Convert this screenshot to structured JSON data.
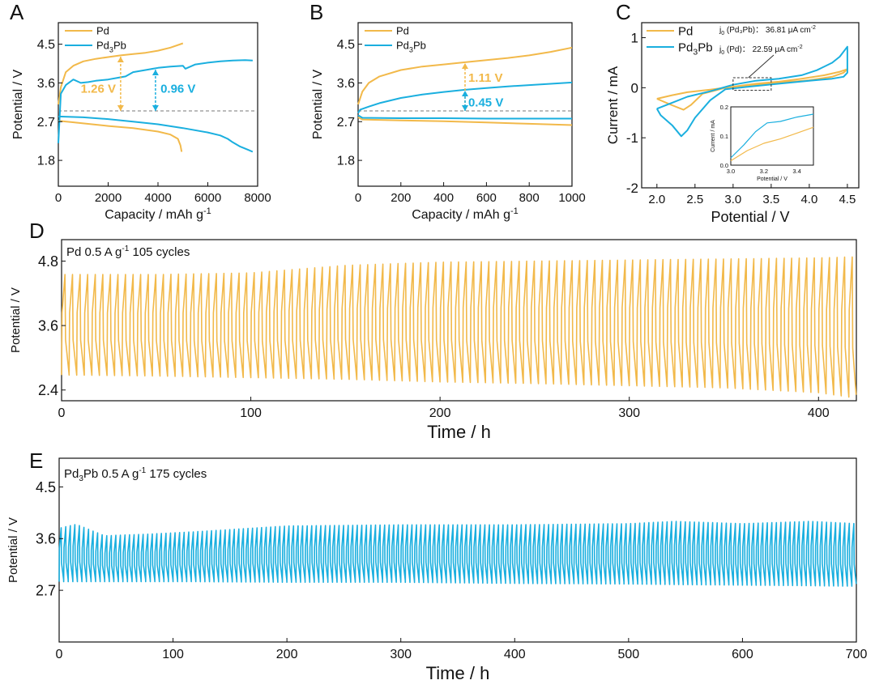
{
  "colors": {
    "pd": "#F2B94A",
    "pd3pb": "#1AAFDF",
    "axis": "#111111",
    "ref": "#777777"
  },
  "chart_data": [
    {
      "panel": "A",
      "type": "line",
      "xlabel": "Capacity / mAh g",
      "xlabel_sup": "-1",
      "ylabel": "Potential / V",
      "xlim": [
        0,
        8000
      ],
      "ylim": [
        1.2,
        5.0
      ],
      "xticks": [
        "0",
        "2000",
        "4000",
        "6000",
        "8000"
      ],
      "yticks": [
        "1.8",
        "2.7",
        "3.6",
        "4.5"
      ],
      "legend": [
        {
          "label": "Pd",
          "color_key": "pd"
        },
        {
          "label": "Pd3Pb",
          "base": "Pd",
          "sub": "3",
          "tail": "Pb",
          "color_key": "pd3pb"
        }
      ],
      "reference_v": 2.95,
      "series": [
        {
          "name": "Pd charge",
          "color_key": "pd",
          "x": [
            0,
            100,
            300,
            600,
            1000,
            1500,
            2000,
            2500,
            3000,
            3500,
            4000,
            4500,
            5000
          ],
          "y": [
            3.1,
            3.5,
            3.85,
            4.0,
            4.1,
            4.16,
            4.2,
            4.24,
            4.27,
            4.3,
            4.35,
            4.42,
            4.52
          ]
        },
        {
          "name": "Pd discharge",
          "color_key": "pd",
          "x": [
            0,
            500,
            1000,
            2000,
            3000,
            4000,
            4500,
            4800,
            4900,
            4950
          ],
          "y": [
            2.72,
            2.69,
            2.66,
            2.6,
            2.55,
            2.47,
            2.4,
            2.3,
            2.15,
            2.0
          ]
        },
        {
          "name": "Pd3Pb charge",
          "color_key": "pd3pb",
          "x": [
            0,
            100,
            300,
            600,
            900,
            1200,
            1500,
            2000,
            2400,
            2700,
            3000,
            3500,
            3800,
            4000,
            4500,
            5000,
            5100,
            5500,
            6000,
            6500,
            7000,
            7500,
            7800
          ],
          "y": [
            2.2,
            3.35,
            3.55,
            3.68,
            3.6,
            3.62,
            3.65,
            3.68,
            3.72,
            3.75,
            3.85,
            3.9,
            3.93,
            3.95,
            3.98,
            4.0,
            3.93,
            4.03,
            4.07,
            4.1,
            4.12,
            4.13,
            4.12
          ]
        },
        {
          "name": "Pd3Pb discharge",
          "color_key": "pd3pb",
          "x": [
            0,
            1000,
            2000,
            3000,
            4000,
            5000,
            6000,
            6500,
            6800,
            7000,
            7300,
            7600,
            7800
          ],
          "y": [
            2.82,
            2.8,
            2.76,
            2.7,
            2.64,
            2.55,
            2.45,
            2.38,
            2.3,
            2.22,
            2.12,
            2.05,
            2.0
          ]
        }
      ],
      "annotations": [
        {
          "text": "1.26 V",
          "color_key": "pd",
          "x": 2500,
          "y_from": 2.95,
          "y_to": 4.21,
          "label_x": 900,
          "label_y": 3.47
        },
        {
          "text": "0.96 V",
          "color_key": "pd3pb",
          "x": 3900,
          "y_from": 2.95,
          "y_to": 3.91,
          "label_x": 4100,
          "label_y": 3.47
        }
      ]
    },
    {
      "panel": "B",
      "type": "line",
      "xlabel": "Capacity / mAh g",
      "xlabel_sup": "-1",
      "ylabel": "Potential / V",
      "xlim": [
        0,
        1000
      ],
      "ylim": [
        1.2,
        5.0
      ],
      "xticks": [
        "0",
        "200",
        "400",
        "600",
        "800",
        "1000"
      ],
      "yticks": [
        "1.8",
        "2.7",
        "3.6",
        "4.5"
      ],
      "legend": [
        {
          "label": "Pd",
          "color_key": "pd"
        },
        {
          "label": "Pd3Pb",
          "base": "Pd",
          "sub": "3",
          "tail": "Pb",
          "color_key": "pd3pb"
        }
      ],
      "reference_v": 2.95,
      "series": [
        {
          "name": "Pd charge",
          "color_key": "pd",
          "x": [
            0,
            20,
            50,
            100,
            200,
            300,
            400,
            500,
            600,
            700,
            800,
            900,
            1000
          ],
          "y": [
            3.1,
            3.4,
            3.6,
            3.75,
            3.9,
            3.98,
            4.03,
            4.08,
            4.13,
            4.18,
            4.24,
            4.32,
            4.42
          ]
        },
        {
          "name": "Pd discharge",
          "color_key": "pd",
          "x": [
            0,
            20,
            200,
            400,
            600,
            800,
            1000
          ],
          "y": [
            2.8,
            2.75,
            2.73,
            2.71,
            2.68,
            2.65,
            2.62
          ]
        },
        {
          "name": "Pd3Pb charge",
          "color_key": "pd3pb",
          "x": [
            0,
            10,
            50,
            100,
            200,
            300,
            400,
            500,
            600,
            700,
            800,
            900,
            1000
          ],
          "y": [
            2.9,
            2.98,
            3.05,
            3.13,
            3.25,
            3.33,
            3.39,
            3.44,
            3.48,
            3.52,
            3.55,
            3.58,
            3.61
          ]
        },
        {
          "name": "Pd3Pb discharge",
          "color_key": "pd3pb",
          "x": [
            0,
            20,
            200,
            400,
            600,
            800,
            1000
          ],
          "y": [
            2.85,
            2.79,
            2.78,
            2.78,
            2.77,
            2.77,
            2.77
          ]
        }
      ],
      "annotations": [
        {
          "text": "1.11 V",
          "color_key": "pd",
          "x": 500,
          "y_from": 2.95,
          "y_to": 4.06,
          "label_x": 515,
          "label_y": 3.72
        },
        {
          "text": "0.45 V",
          "color_key": "pd3pb",
          "x": 500,
          "y_from": 2.95,
          "y_to": 3.42,
          "label_x": 515,
          "label_y": 3.15
        }
      ]
    },
    {
      "panel": "C",
      "type": "line",
      "xlabel": "Potential / V",
      "ylabel": "Current / mA",
      "xlim": [
        1.8,
        4.65
      ],
      "ylim": [
        -2,
        1.3
      ],
      "xticks": [
        "2.0",
        "2.5",
        "3.0",
        "3.5",
        "4.0",
        "4.5"
      ],
      "yticks": [
        "-2",
        "-1",
        "0",
        "1"
      ],
      "legend": [
        {
          "label": "Pd",
          "color_key": "pd"
        },
        {
          "label": "Pd3Pb",
          "base": "Pd",
          "sub": "3",
          "tail": "Pb",
          "color_key": "pd3pb"
        }
      ],
      "text_annotations": [
        {
          "base": "j",
          "sub": "0",
          "tail": " (Pd₃Pb)： 36.81 μA cm",
          "sup": "-2"
        },
        {
          "base": "j",
          "sub": "0",
          "tail": " (Pd)： 22.59 μA cm",
          "sup": "-2"
        }
      ],
      "series": [
        {
          "name": "Pd CV",
          "color_key": "pd",
          "x": [
            2.0,
            2.2,
            2.4,
            2.7,
            3.0,
            3.3,
            3.6,
            3.9,
            4.2,
            4.4,
            4.5,
            4.45,
            4.3,
            4.0,
            3.6,
            3.2,
            2.9,
            2.6,
            2.45,
            2.35,
            2.2,
            2.0
          ],
          "y": [
            -0.22,
            -0.15,
            -0.09,
            -0.04,
            0.02,
            0.08,
            0.12,
            0.18,
            0.25,
            0.32,
            0.37,
            0.3,
            0.22,
            0.15,
            0.1,
            0.05,
            0.0,
            -0.12,
            -0.34,
            -0.44,
            -0.35,
            -0.22
          ]
        },
        {
          "name": "Pd3Pb CV",
          "color_key": "pd3pb",
          "x": [
            2.0,
            2.2,
            2.4,
            2.7,
            3.0,
            3.3,
            3.6,
            3.9,
            4.1,
            4.3,
            4.4,
            4.5,
            4.5,
            4.45,
            4.3,
            4.0,
            3.6,
            3.2,
            2.9,
            2.7,
            2.5,
            2.4,
            2.32,
            2.2,
            2.05,
            2.0
          ],
          "y": [
            -0.42,
            -0.3,
            -0.18,
            -0.07,
            0.06,
            0.14,
            0.18,
            0.25,
            0.35,
            0.5,
            0.62,
            0.82,
            0.3,
            0.22,
            0.18,
            0.14,
            0.08,
            0.02,
            -0.03,
            -0.25,
            -0.6,
            -0.85,
            -0.97,
            -0.75,
            -0.55,
            -0.42
          ]
        }
      ],
      "inset": {
        "xlabel": "Potential / V",
        "ylabel": "Current / mA",
        "xlim": [
          3.0,
          3.5
        ],
        "ylim": [
          0.0,
          0.2
        ],
        "xticks": [
          "3.0",
          "3.2",
          "3.4"
        ],
        "yticks": [
          "0.0",
          "0.1",
          "0.2"
        ],
        "series": [
          {
            "color_key": "pd",
            "x": [
              3.0,
              3.1,
              3.2,
              3.3,
              3.4,
              3.5
            ],
            "y": [
              0.015,
              0.05,
              0.075,
              0.09,
              0.11,
              0.13
            ]
          },
          {
            "color_key": "pd3pb",
            "x": [
              3.0,
              3.08,
              3.15,
              3.22,
              3.3,
              3.4,
              3.5
            ],
            "y": [
              0.025,
              0.07,
              0.115,
              0.145,
              0.15,
              0.165,
              0.175
            ]
          }
        ]
      }
    },
    {
      "panel": "D",
      "type": "line",
      "title_base": "Pd  0.5 A g",
      "title_sup": "-1",
      "title_tail": " 105 cycles",
      "xlabel": "Time / h",
      "ylabel": "Potential / V",
      "xlim": [
        0,
        420
      ],
      "ylim": [
        2.2,
        5.2
      ],
      "xticks": [
        "0",
        "100",
        "200",
        "300",
        "400"
      ],
      "yticks": [
        "2.4",
        "3.6",
        "4.8"
      ],
      "cycling": {
        "color_key": "pd",
        "cycles": 105,
        "t_end": 420,
        "t_knots": [
          0,
          50,
          100,
          150,
          200,
          250,
          300,
          350,
          400,
          420
        ],
        "upper_v": [
          4.55,
          4.55,
          4.58,
          4.72,
          4.78,
          4.8,
          4.82,
          4.84,
          4.86,
          4.88
        ],
        "lower_v": [
          2.68,
          2.66,
          2.63,
          2.6,
          2.55,
          2.52,
          2.48,
          2.44,
          2.35,
          2.25
        ]
      }
    },
    {
      "panel": "E",
      "type": "line",
      "title_base": "Pd",
      "title_sub": "3",
      "title_mid": "Pb  0.5 A g",
      "title_sup": "-1",
      "title_tail": "   175 cycles",
      "xlabel": "Time / h",
      "ylabel": "Potential / V",
      "xlim": [
        0,
        700
      ],
      "ylim": [
        1.8,
        5.0
      ],
      "xticks": [
        "0",
        "100",
        "200",
        "300",
        "400",
        "500",
        "600",
        "700"
      ],
      "yticks": [
        "2.7",
        "3.6",
        "4.5"
      ],
      "cycling": {
        "color_key": "pd3pb",
        "cycles": 175,
        "t_end": 700,
        "t_knots": [
          0,
          15,
          40,
          80,
          120,
          200,
          300,
          400,
          500,
          540,
          600,
          660,
          700
        ],
        "upper_v": [
          3.78,
          3.85,
          3.65,
          3.68,
          3.72,
          3.82,
          3.84,
          3.84,
          3.86,
          3.9,
          3.86,
          3.9,
          3.86
        ],
        "lower_v": [
          2.85,
          2.85,
          2.85,
          2.85,
          2.85,
          2.84,
          2.84,
          2.82,
          2.81,
          2.8,
          2.79,
          2.78,
          2.77
        ]
      }
    }
  ]
}
